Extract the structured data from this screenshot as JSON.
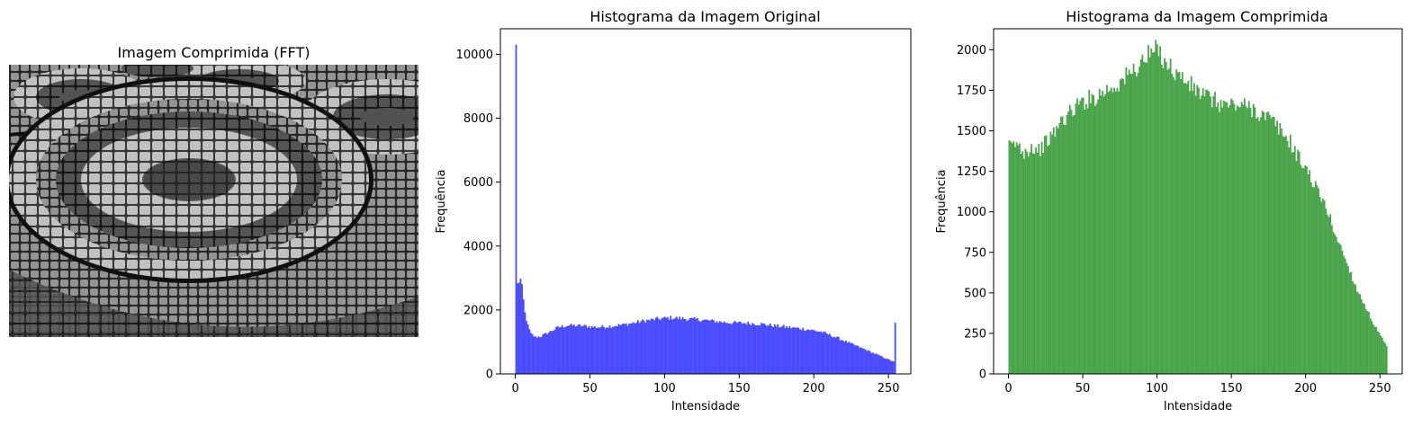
{
  "image_panel": {
    "title": "Imagem Comprimida (FFT)",
    "image_content": "grayscale cobblestone pavement with concentric circular mosaic patterns"
  },
  "colors": {
    "original_hist": "#4a4aff",
    "compressed_hist": "#4aa54a",
    "background": "#ffffff"
  },
  "chart_data": [
    {
      "type": "bar",
      "title": "Histograma da Imagem Original",
      "xlabel": "Intensidade",
      "ylabel": "Frequência",
      "xlim": [
        -10,
        265
      ],
      "ylim": [
        0,
        10800
      ],
      "xticks": [
        0,
        50,
        100,
        150,
        200,
        250
      ],
      "yticks": [
        0,
        2000,
        4000,
        6000,
        8000,
        10000
      ],
      "grid": false,
      "bins": 256,
      "color": "#4a4aff",
      "keypoints": [
        [
          0,
          10300
        ],
        [
          1,
          2800
        ],
        [
          2,
          2900
        ],
        [
          3,
          2950
        ],
        [
          4,
          2700
        ],
        [
          5,
          2300
        ],
        [
          6,
          1900
        ],
        [
          8,
          1500
        ],
        [
          10,
          1250
        ],
        [
          13,
          1150
        ],
        [
          17,
          1180
        ],
        [
          22,
          1300
        ],
        [
          28,
          1450
        ],
        [
          35,
          1520
        ],
        [
          45,
          1500
        ],
        [
          55,
          1460
        ],
        [
          65,
          1500
        ],
        [
          75,
          1560
        ],
        [
          85,
          1650
        ],
        [
          95,
          1720
        ],
        [
          105,
          1760
        ],
        [
          115,
          1720
        ],
        [
          125,
          1690
        ],
        [
          135,
          1640
        ],
        [
          145,
          1600
        ],
        [
          155,
          1590
        ],
        [
          165,
          1560
        ],
        [
          175,
          1500
        ],
        [
          185,
          1450
        ],
        [
          195,
          1400
        ],
        [
          205,
          1320
        ],
        [
          215,
          1150
        ],
        [
          225,
          950
        ],
        [
          235,
          760
        ],
        [
          245,
          560
        ],
        [
          252,
          420
        ],
        [
          254,
          380
        ],
        [
          255,
          1600
        ]
      ]
    },
    {
      "type": "bar",
      "title": "Histograma da Imagem Comprimida",
      "xlabel": "Intensidade",
      "ylabel": "Frequência",
      "xlim": [
        -10,
        265
      ],
      "ylim": [
        0,
        2130
      ],
      "xticks": [
        0,
        50,
        100,
        150,
        200,
        250
      ],
      "yticks": [
        0,
        250,
        500,
        750,
        1000,
        1250,
        1500,
        1750,
        2000
      ],
      "grid": false,
      "bins": 256,
      "color": "#4aa54a",
      "keypoints": [
        [
          0,
          1400
        ],
        [
          5,
          1420
        ],
        [
          10,
          1370
        ],
        [
          15,
          1400
        ],
        [
          20,
          1380
        ],
        [
          25,
          1430
        ],
        [
          30,
          1480
        ],
        [
          35,
          1560
        ],
        [
          40,
          1600
        ],
        [
          45,
          1650
        ],
        [
          50,
          1680
        ],
        [
          55,
          1700
        ],
        [
          60,
          1720
        ],
        [
          65,
          1750
        ],
        [
          70,
          1770
        ],
        [
          75,
          1800
        ],
        [
          80,
          1840
        ],
        [
          85,
          1880
        ],
        [
          90,
          1930
        ],
        [
          95,
          1970
        ],
        [
          100,
          2000
        ],
        [
          105,
          1940
        ],
        [
          110,
          1880
        ],
        [
          115,
          1840
        ],
        [
          120,
          1800
        ],
        [
          125,
          1760
        ],
        [
          130,
          1730
        ],
        [
          135,
          1700
        ],
        [
          140,
          1680
        ],
        [
          145,
          1660
        ],
        [
          150,
          1660
        ],
        [
          155,
          1660
        ],
        [
          160,
          1650
        ],
        [
          165,
          1640
        ],
        [
          170,
          1600
        ],
        [
          175,
          1580
        ],
        [
          180,
          1540
        ],
        [
          185,
          1480
        ],
        [
          190,
          1430
        ],
        [
          195,
          1340
        ],
        [
          200,
          1280
        ],
        [
          205,
          1190
        ],
        [
          210,
          1100
        ],
        [
          215,
          1010
        ],
        [
          220,
          870
        ],
        [
          225,
          760
        ],
        [
          230,
          640
        ],
        [
          235,
          520
        ],
        [
          240,
          430
        ],
        [
          245,
          330
        ],
        [
          250,
          250
        ],
        [
          255,
          170
        ]
      ]
    }
  ]
}
